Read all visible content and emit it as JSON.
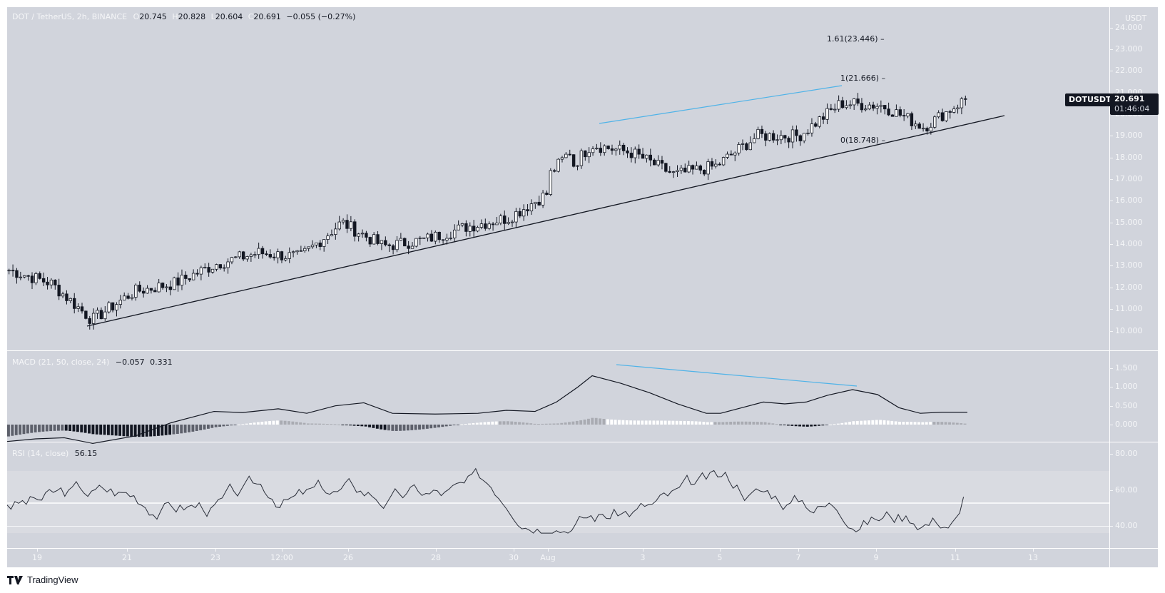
{
  "header": {
    "symbol_title": "DOT / TetherUS, 2h, BINANCE",
    "ohlc": [
      {
        "key": "O",
        "value": "20.745"
      },
      {
        "key": "H",
        "value": "20.828"
      },
      {
        "key": "L",
        "value": "20.604"
      },
      {
        "key": "C",
        "value": "20.691"
      }
    ],
    "change": "−0.055 (−0.27%)"
  },
  "price_axis": {
    "currency": "USDT",
    "ticks": [
      "24.000",
      "23.000",
      "22.000",
      "21.000",
      "20.000",
      "19.000",
      "18.000",
      "17.000",
      "16.000",
      "15.000",
      "14.000",
      "13.000",
      "12.000",
      "11.000",
      "10.000"
    ],
    "symbol_tag": "DOTUSDT",
    "last_price": "20.691",
    "countdown": "01:46:04"
  },
  "fib_levels": [
    {
      "label": "1.61(23.446)",
      "ratio": 1.61,
      "price": 23.446
    },
    {
      "label": "1(21.666)",
      "ratio": 1,
      "price": 21.666
    },
    {
      "label": "0(18.748)",
      "ratio": 0,
      "price": 18.748
    }
  ],
  "macd": {
    "title": "MACD (21, 50, close, 24)",
    "values": [
      "−0.057",
      "0.331"
    ],
    "ticks": [
      "1.500",
      "1.000",
      "0.500",
      "0.000"
    ]
  },
  "rsi": {
    "title": "RSI (14, close)",
    "value": "56.15",
    "ticks": [
      "80.00",
      "60.00",
      "40.00"
    ]
  },
  "time_axis": {
    "ticks": [
      "19",
      "21",
      "23",
      "12:00",
      "26",
      "28",
      "30",
      "Aug",
      "3",
      "5",
      "7",
      "9",
      "11",
      "13"
    ]
  },
  "branding": {
    "logo_text": "TradingView"
  },
  "colors": {
    "background": "#d1d4dc",
    "rsi_band": "#d9dbe1",
    "candle_up": "#ffffff",
    "candle_down": "#131722",
    "divergence_line": "#4fb3e8",
    "trendline": "#131722",
    "axis_text": "#f5f6f8"
  },
  "chart_data": {
    "type": "candlestick",
    "title": "DOT / TetherUS, 2h, BINANCE",
    "xlabel": "",
    "ylabel": "USDT",
    "ylim": [
      9.3,
      24.9
    ],
    "x_ticks": [
      "19",
      "21",
      "23",
      "12:00",
      "26",
      "28",
      "30",
      "Aug",
      "3",
      "5",
      "7",
      "9",
      "11",
      "13"
    ],
    "approx_closes_by_day": [
      {
        "x": "18",
        "close": 12.8
      },
      {
        "x": "19",
        "close": 12.2
      },
      {
        "x": "20",
        "close": 10.5
      },
      {
        "x": "21",
        "close": 11.8
      },
      {
        "x": "22",
        "close": 12.2
      },
      {
        "x": "23",
        "close": 13.1
      },
      {
        "x": "24",
        "close": 13.6
      },
      {
        "x": "25",
        "close": 13.4
      },
      {
        "x": "26",
        "close": 15.0
      },
      {
        "x": "27",
        "close": 13.9
      },
      {
        "x": "28",
        "close": 14.2
      },
      {
        "x": "29",
        "close": 14.8
      },
      {
        "x": "30",
        "close": 15.2
      },
      {
        "x": "31",
        "close": 16.4
      },
      {
        "x": "Aug 1",
        "close": 18.6
      },
      {
        "x": "2",
        "close": 18.2
      },
      {
        "x": "3",
        "close": 17.2
      },
      {
        "x": "4",
        "close": 17.6
      },
      {
        "x": "5",
        "close": 19.0
      },
      {
        "x": "6",
        "close": 19.0
      },
      {
        "x": "7",
        "close": 20.5
      },
      {
        "x": "8",
        "close": 20.4
      },
      {
        "x": "9",
        "close": 19.4
      },
      {
        "x": "10",
        "close": 20.691
      }
    ],
    "last": {
      "open": 20.745,
      "high": 20.828,
      "low": 20.604,
      "close": 20.691,
      "change": -0.055,
      "change_pct": -0.27
    },
    "annotations": [
      {
        "type": "ascending-trendline",
        "from": {
          "x": "20",
          "price": 10.2
        },
        "to": {
          "x": "11",
          "price": 19.9
        }
      },
      {
        "type": "resistance-line-blue",
        "from": {
          "x": "Aug 1",
          "price": 19.5
        },
        "to": {
          "x": "7",
          "price": 21.3
        }
      },
      {
        "type": "fib-retracement",
        "levels": [
          {
            "ratio": 1.61,
            "price": 23.446
          },
          {
            "ratio": 1,
            "price": 21.666
          },
          {
            "ratio": 0,
            "price": 18.748
          }
        ]
      },
      {
        "type": "macd-bearish-divergence-line",
        "from_value": 1.35,
        "to_value": 0.9
      }
    ],
    "indicators": {
      "macd": {
        "params": [
          21,
          50,
          "close",
          24
        ],
        "histogram": -0.057,
        "macd": 0.331,
        "ylim": [
          -0.4,
          1.6
        ],
        "peak": 1.3
      },
      "rsi": {
        "params": [
          14,
          "close"
        ],
        "value": 56.15,
        "bands": [
          70,
          50,
          40
        ],
        "ylim": [
          30,
          85
        ]
      }
    }
  }
}
